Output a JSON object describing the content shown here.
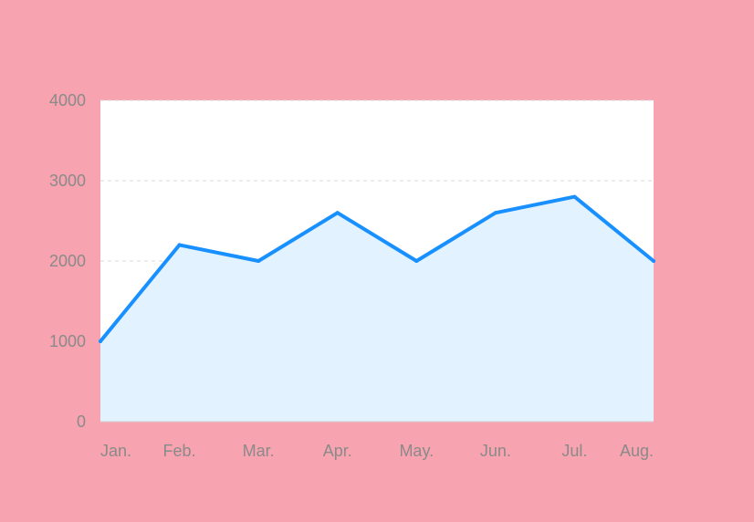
{
  "colors": {
    "page_background": "#f7a4b0",
    "plot_background": "#ffffff",
    "line": "#1890ff",
    "area_fill": "#e2f2fe",
    "grid": "#d9d9d9",
    "tick_label": "#8a8a8a"
  },
  "chart_data": {
    "type": "area",
    "title": "",
    "xlabel": "",
    "ylabel": "",
    "categories": [
      "Jan.",
      "Feb.",
      "Mar.",
      "Apr.",
      "May.",
      "Jun.",
      "Jul.",
      "Aug."
    ],
    "values": [
      1000,
      2200,
      2000,
      2600,
      2000,
      2600,
      2800,
      2000
    ],
    "ylim": [
      0,
      4000
    ],
    "yticks": [
      "0",
      "1000",
      "2000",
      "3000",
      "4000"
    ],
    "grid": true,
    "legend": "none"
  }
}
